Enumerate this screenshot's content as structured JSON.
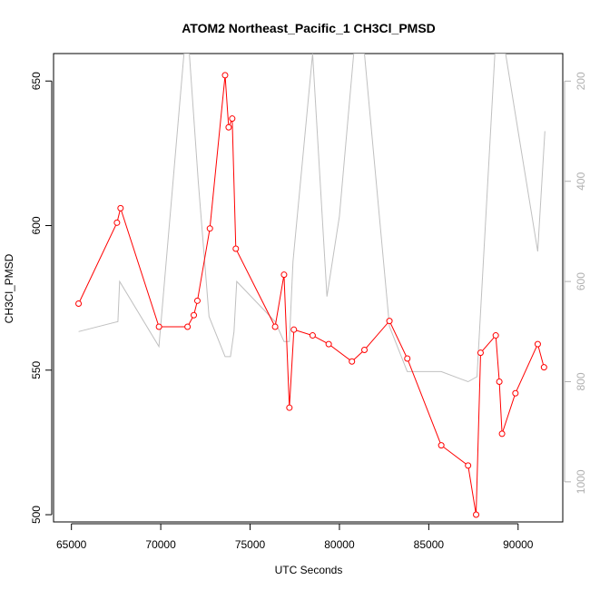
{
  "chart_data": {
    "type": "line",
    "title": "ATOM2 Northeast_Pacific_1 CH3Cl_PMSD",
    "xlabel": "UTC Seconds",
    "ylabel": "CH3Cl_PMSD",
    "xlim": [
      64000,
      92500
    ],
    "ylim": [
      497.5,
      659.5
    ],
    "y2lim": [
      1080,
      145
    ],
    "xticks": [
      65000,
      70000,
      75000,
      80000,
      85000,
      90000
    ],
    "yticks": [
      500,
      550,
      600,
      650
    ],
    "y2ticks": [
      200,
      400,
      600,
      800,
      1000
    ],
    "grid": false,
    "legend": "none",
    "series": [
      {
        "axis": "left",
        "color": "#ff0000",
        "markers": "open-circle",
        "x": [
          65400,
          67550,
          67750,
          69900,
          71500,
          71850,
          72050,
          72750,
          73600,
          73800,
          74000,
          74200,
          76400,
          76900,
          77200,
          77450,
          78500,
          79400,
          80700,
          81400,
          82800,
          83800,
          85700,
          87200,
          87650,
          87900,
          88750,
          88950,
          89100,
          89850,
          91100,
          91450
        ],
        "values": [
          573,
          601,
          606,
          565,
          565,
          569,
          574,
          599,
          652,
          634,
          637,
          592,
          565,
          583,
          537,
          564,
          562,
          559,
          553,
          557,
          567,
          554,
          524,
          517,
          500,
          556,
          562,
          546,
          528,
          542,
          559,
          551
        ]
      },
      {
        "axis": "right",
        "color": "#c0c0c0",
        "markers": "none",
        "x": [
          65400,
          67600,
          67700,
          69900,
          71300,
          71600,
          72100,
          72700,
          73600,
          73900,
          74100,
          74250,
          76400,
          76900,
          77200,
          77400,
          78500,
          79300,
          80000,
          80800,
          81400,
          82800,
          83800,
          85700,
          87200,
          87700,
          88700,
          89300,
          90000,
          91100,
          91500
        ],
        "values": [
          700,
          680,
          600,
          730,
          145,
          145,
          400,
          670,
          750,
          750,
          700,
          600,
          680,
          720,
          720,
          560,
          145,
          630,
          470,
          145,
          145,
          690,
          780,
          780,
          800,
          790,
          145,
          145,
          300,
          540,
          300
        ]
      }
    ]
  }
}
